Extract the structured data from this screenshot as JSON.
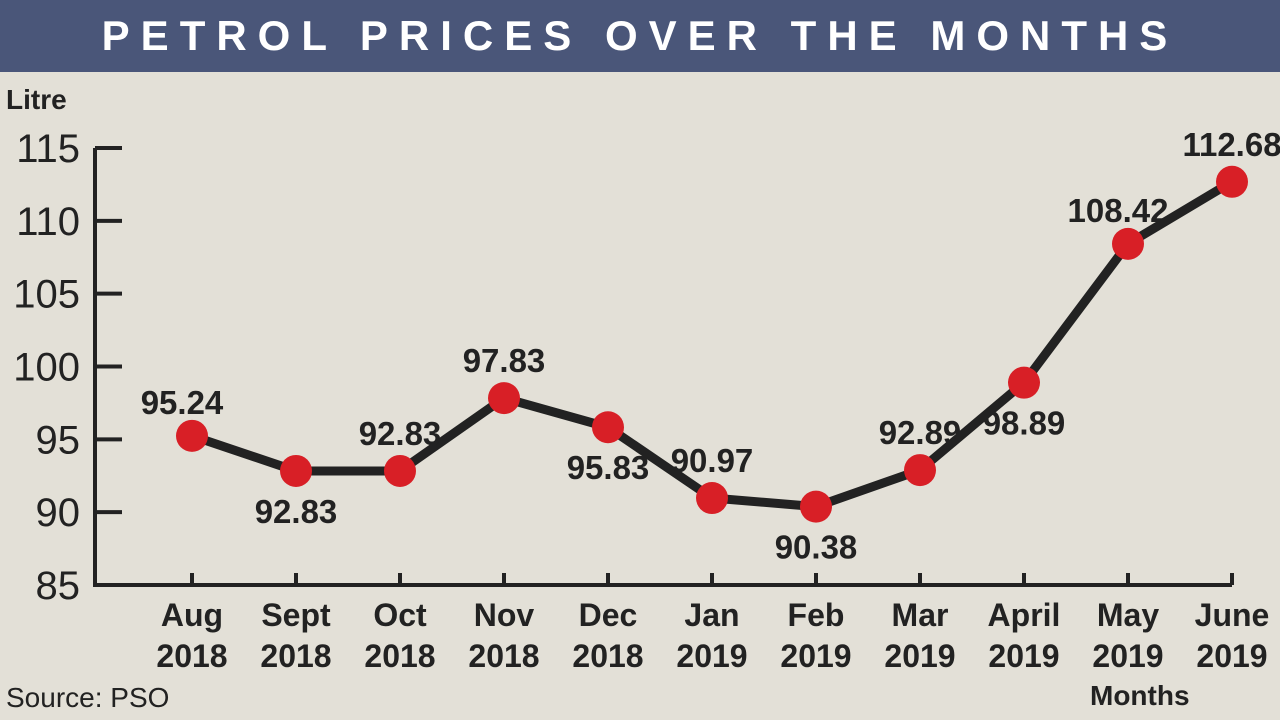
{
  "chart_data": {
    "type": "line",
    "title": "PETROL PRICES OVER THE MONTHS",
    "ylabel": "Litre",
    "xlabel": "Months",
    "source": "Source: PSO",
    "ylim": [
      85,
      115
    ],
    "yticks": [
      "85",
      "90",
      "95",
      "100",
      "105",
      "110",
      "115"
    ],
    "categories": [
      [
        "Aug",
        "2018"
      ],
      [
        "Sept",
        "2018"
      ],
      [
        "Oct",
        "2018"
      ],
      [
        "Nov",
        "2018"
      ],
      [
        "Dec",
        "2018"
      ],
      [
        "Jan",
        "2019"
      ],
      [
        "Feb",
        "2019"
      ],
      [
        "Mar",
        "2019"
      ],
      [
        "April",
        "2019"
      ],
      [
        "May",
        "2019"
      ],
      [
        "June",
        "2019"
      ]
    ],
    "values": [
      95.24,
      92.83,
      92.83,
      97.83,
      95.83,
      90.97,
      90.38,
      92.89,
      98.89,
      108.42,
      112.68
    ],
    "data_labels": [
      "95.24",
      "92.83",
      "92.83",
      "97.83",
      "95.83",
      "90.97",
      "90.38",
      "92.89",
      "98.89",
      "108.42",
      "112.68"
    ],
    "label_positions": [
      "above-left",
      "below",
      "above",
      "above",
      "below",
      "above",
      "below",
      "above",
      "below",
      "above-left",
      "above"
    ],
    "grid": false,
    "colors": {
      "line": "#222222",
      "marker": "#d81f26",
      "title_bar": "#4a5679"
    }
  }
}
